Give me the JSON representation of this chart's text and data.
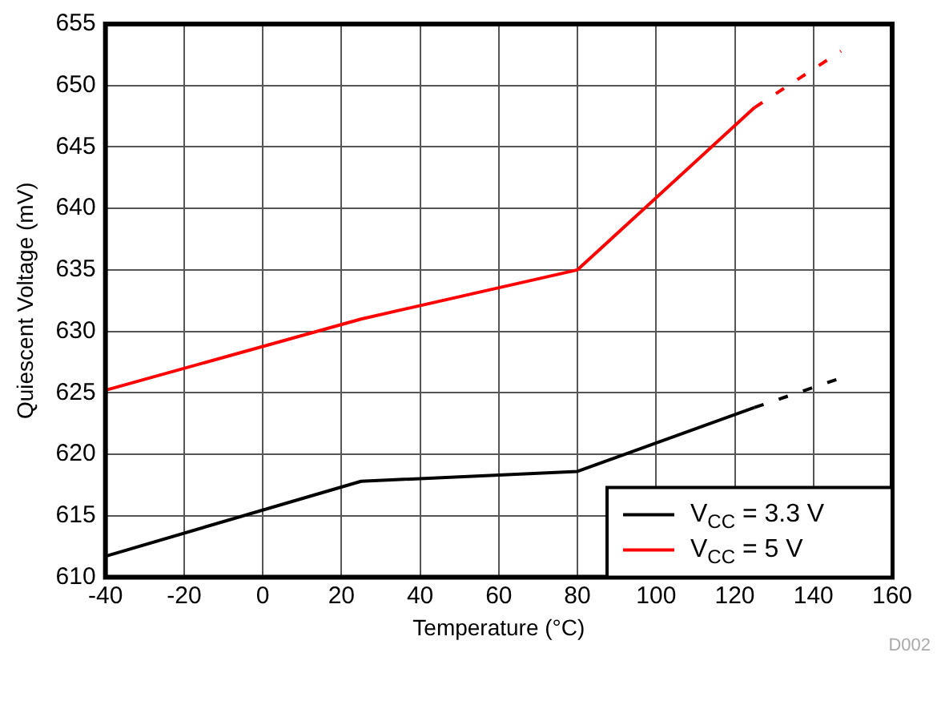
{
  "chart_data": {
    "type": "line",
    "xlabel": "Temperature (°C)",
    "ylabel": "Quiescent Voltage (mV)",
    "annotations": [
      "D002"
    ],
    "xlim": [
      -40,
      160
    ],
    "xticks": [
      -40,
      -20,
      0,
      20,
      40,
      60,
      80,
      100,
      120,
      140,
      160
    ],
    "ylim": [
      610,
      655
    ],
    "yticks": [
      610,
      615,
      620,
      625,
      630,
      635,
      640,
      645,
      650,
      655
    ],
    "grid": true,
    "legend": "bottom right",
    "marker": "none",
    "series": [
      {
        "name": "V$_{CC}$ = 3.3 V",
        "color": "#000000",
        "x": [
          -40,
          25,
          80,
          125
        ],
        "values": [
          611.7,
          617.8,
          618.6,
          623.8
        ],
        "line_style": "solid"
      },
      {
        "name": "V$_{CC}$ = 5 V",
        "color": "#ff0000",
        "x": [
          -40,
          25,
          80,
          125
        ],
        "values": [
          625.2,
          631,
          635,
          648.2
        ],
        "line_style": "solid"
      },
      {
        "color": "#000000",
        "x": [
          125,
          147
        ],
        "values": [
          623.8,
          626.2
        ],
        "line_style": "dashed"
      },
      {
        "color": "#ff0000",
        "x": [
          125,
          147
        ],
        "values": [
          648.2,
          652.8
        ],
        "line_style": "dashed"
      }
    ]
  }
}
